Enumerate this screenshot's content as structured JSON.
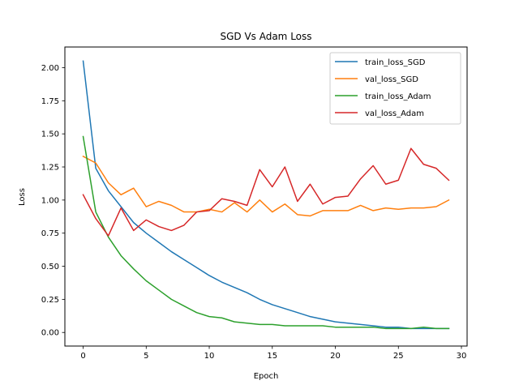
{
  "chart_data": {
    "type": "line",
    "title": "SGD Vs Adam Loss",
    "xlabel": "Epoch",
    "ylabel": "Loss",
    "xlim": [
      -1.45,
      30.45
    ],
    "ylim": [
      -0.1027,
      2.156
    ],
    "xticks": [
      0,
      5,
      10,
      15,
      20,
      25,
      30
    ],
    "xtick_labels": [
      "0",
      "5",
      "10",
      "15",
      "20",
      "25",
      "30"
    ],
    "yticks": [
      0.0,
      0.25,
      0.5,
      0.75,
      1.0,
      1.25,
      1.5,
      1.75,
      2.0
    ],
    "ytick_labels": [
      "0.00",
      "0.25",
      "0.50",
      "0.75",
      "1.00",
      "1.25",
      "1.50",
      "1.75",
      "2.00"
    ],
    "grid": false,
    "legend_position": "top-right",
    "x": [
      0,
      1,
      2,
      3,
      4,
      5,
      6,
      7,
      8,
      9,
      10,
      11,
      12,
      13,
      14,
      15,
      16,
      17,
      18,
      19,
      20,
      21,
      22,
      23,
      24,
      25,
      26,
      27,
      28,
      29
    ],
    "series": [
      {
        "name": "train_loss_SGD",
        "color": "#1f77b4",
        "values": [
          2.05,
          1.24,
          1.07,
          0.95,
          0.83,
          0.75,
          0.68,
          0.61,
          0.55,
          0.49,
          0.43,
          0.38,
          0.34,
          0.3,
          0.25,
          0.21,
          0.18,
          0.15,
          0.12,
          0.1,
          0.08,
          0.07,
          0.06,
          0.05,
          0.04,
          0.04,
          0.03,
          0.03,
          0.03,
          0.03
        ]
      },
      {
        "name": "val_loss_SGD",
        "color": "#ff7f0e",
        "values": [
          1.33,
          1.28,
          1.13,
          1.04,
          1.09,
          0.95,
          0.99,
          0.96,
          0.91,
          0.91,
          0.93,
          0.91,
          0.98,
          0.91,
          1.0,
          0.91,
          0.97,
          0.89,
          0.88,
          0.92,
          0.92,
          0.92,
          0.96,
          0.92,
          0.94,
          0.93,
          0.94,
          0.94,
          0.95,
          1.0
        ]
      },
      {
        "name": "train_loss_Adam",
        "color": "#2ca02c",
        "values": [
          1.48,
          0.91,
          0.72,
          0.58,
          0.48,
          0.39,
          0.32,
          0.25,
          0.2,
          0.15,
          0.12,
          0.11,
          0.08,
          0.07,
          0.06,
          0.06,
          0.05,
          0.05,
          0.05,
          0.05,
          0.04,
          0.04,
          0.04,
          0.04,
          0.03,
          0.03,
          0.03,
          0.04,
          0.03,
          0.03
        ]
      },
      {
        "name": "val_loss_Adam",
        "color": "#d62728",
        "values": [
          1.04,
          0.86,
          0.73,
          0.94,
          0.77,
          0.85,
          0.8,
          0.77,
          0.81,
          0.91,
          0.92,
          1.01,
          0.99,
          0.96,
          1.23,
          1.1,
          1.25,
          0.99,
          1.12,
          0.97,
          1.02,
          1.03,
          1.16,
          1.26,
          1.12,
          1.15,
          1.39,
          1.27,
          1.24,
          1.15
        ]
      }
    ]
  }
}
